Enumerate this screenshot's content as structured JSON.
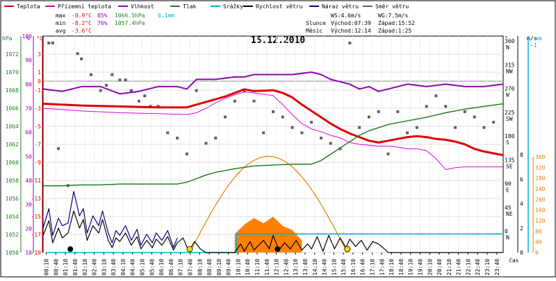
{
  "chart_data": {
    "type": "line",
    "title": "15.12.2010",
    "legend": [
      {
        "label": "Teplota",
        "color": "#e00000"
      },
      {
        "label": "Přízemní teplota",
        "color": "#e000e0"
      },
      {
        "label": "Vlhkost",
        "color": "#9000b0"
      },
      {
        "label": "Tlak",
        "color": "#208020"
      },
      {
        "label": "Srážky",
        "color": "#00b0d0"
      },
      {
        "label": "Rychlost větru",
        "color": "#000000"
      },
      {
        "label": "Náraz větru",
        "color": "#000080"
      },
      {
        "label": "Směr větru",
        "color": "#606060"
      }
    ],
    "stats": {
      "max_label": "max",
      "max_temp": "-0.9°C",
      "max_hum": "85%",
      "max_press": "1066.5hPa",
      "precip": "0.1mm",
      "min_label": "min",
      "min_temp": "-8.2°C",
      "min_hum": "76%",
      "min_press": "1057.4hPa",
      "avg_label": "avg",
      "avg_temp": "-3.6°C"
    },
    "wind_info": {
      "ws": "WS:4.6m/s",
      "wg": "WG:7.5m/s"
    },
    "sun_info": {
      "label": "Slunce",
      "rise": "Východ:07:39",
      "set": "Západ:15:52"
    },
    "moon_info": {
      "label": "Měsíc",
      "rise": "Východ:12:14",
      "set": "Západ:1:25"
    },
    "axes": {
      "hpa": {
        "label": "hPa",
        "ticks": [
          "1050",
          "1052",
          "1054",
          "1056",
          "1058",
          "1060",
          "1062",
          "1064",
          "1066",
          "1068",
          "1070",
          "1072"
        ],
        "range": [
          1050,
          1074
        ]
      },
      "pct": {
        "label": "%",
        "ticks": [
          "10",
          "20",
          "30",
          "40",
          "50",
          "60",
          "70",
          "80",
          "90",
          "100"
        ],
        "range": [
          10,
          100
        ]
      },
      "celsius": {
        "label": "°C",
        "ticks": [
          "-19",
          "-17",
          "-15",
          "-13",
          "-11",
          "-9",
          "-7",
          "-5",
          "-3",
          "-1",
          "0",
          "1",
          "3"
        ],
        "range": [
          -19,
          5
        ]
      },
      "direction": {
        "label": "°",
        "ticks": [
          "0",
          "45",
          "90",
          "135",
          "180",
          "225",
          "270",
          "315",
          "360"
        ],
        "names": [
          "N",
          "NE",
          "E",
          "SE",
          "S",
          "SW",
          "W",
          "NW",
          "N"
        ]
      },
      "ms": {
        "label": "m/s",
        "ticks": [
          "0",
          "2",
          "4",
          "6",
          "8"
        ],
        "range": [
          0,
          8
        ]
      },
      "mm": {
        "label": "mm",
        "ticks": [
          "0",
          "40",
          "80",
          "120",
          "160",
          "200",
          "240",
          "280",
          "320",
          "360"
        ],
        "range": [
          0,
          360
        ],
        "top_label": "~1"
      },
      "x_unit": "čas",
      "x_ticks": [
        "00:10",
        "00:40",
        "01:10",
        "01:40",
        "02:10",
        "02:40",
        "03:10",
        "03:40",
        "04:10",
        "04:40",
        "05:10",
        "05:40",
        "06:10",
        "06:40",
        "07:10",
        "07:40",
        "08:10",
        "08:40",
        "09:10",
        "09:40",
        "10:10",
        "10:40",
        "11:10",
        "11:40",
        "12:10",
        "12:40",
        "13:10",
        "13:40",
        "14:10",
        "14:40",
        "15:10",
        "15:40",
        "16:10",
        "16:40",
        "17:10",
        "17:40",
        "18:10",
        "18:40",
        "19:10",
        "19:40",
        "20:10",
        "20:40",
        "21:10",
        "21:40",
        "22:10",
        "22:40",
        "23:10",
        "23:40"
      ]
    },
    "x_range_hours": [
      0,
      24
    ],
    "series": [
      {
        "name": "Teplota",
        "color": "#e00000",
        "x": [
          0,
          2,
          4,
          6,
          7.5,
          8,
          8.5,
          9,
          9.5,
          10,
          10.5,
          11,
          12,
          12.5,
          13,
          13.5,
          14,
          14.5,
          15,
          15.5,
          16,
          16.5,
          17,
          17.5,
          18,
          18.5,
          19,
          19.5,
          20,
          20.5,
          21,
          21.5,
          22,
          22.5,
          23,
          23.5,
          24
        ],
        "y": [
          -2.5,
          -2.7,
          -2.8,
          -2.9,
          -2.9,
          -2.6,
          -2.3,
          -2.0,
          -1.7,
          -1.3,
          -0.9,
          -1.1,
          -1.0,
          -1.3,
          -1.8,
          -2.6,
          -3.3,
          -4.0,
          -4.7,
          -5.3,
          -5.8,
          -6.2,
          -6.6,
          -6.8,
          -6.6,
          -6.4,
          -6.2,
          -6.1,
          -6.2,
          -6.4,
          -6.5,
          -6.7,
          -7.0,
          -7.5,
          -7.8,
          -8.0,
          -8.2
        ]
      },
      {
        "name": "Přízemní teplota",
        "color": "#e000e0",
        "x": [
          0,
          2,
          4,
          6,
          7.5,
          8,
          8.5,
          9,
          9.5,
          10,
          10.5,
          11,
          12,
          12.5,
          13,
          13.5,
          14,
          14.5,
          15,
          15.5,
          16,
          16.5,
          17,
          17.5,
          18,
          18.5,
          19,
          19.5,
          20,
          20.5,
          21,
          21.5,
          22,
          22.5,
          23,
          23.5,
          24
        ],
        "y": [
          -3.0,
          -3.3,
          -3.5,
          -3.6,
          -3.7,
          -3.5,
          -3.0,
          -2.4,
          -1.9,
          -1.5,
          -1.2,
          -1.3,
          -1.6,
          -2.6,
          -3.7,
          -4.7,
          -5.3,
          -5.6,
          -6.0,
          -6.3,
          -6.8,
          -7.0,
          -7.1,
          -7.2,
          -7.2,
          -7.3,
          -7.5,
          -7.5,
          -7.7,
          -8.6,
          -9.8,
          -9.6,
          -9.5,
          -9.5,
          -9.5,
          -9.5,
          -9.5
        ]
      },
      {
        "name": "Vlhkost",
        "color": "#9000b0",
        "x": [
          0,
          1,
          2,
          3,
          4,
          5,
          6,
          7,
          7.5,
          8,
          9,
          10,
          10.5,
          11,
          12,
          13,
          14,
          14.5,
          15,
          16,
          16.5,
          17,
          17.5,
          18,
          19,
          20,
          21,
          22,
          23,
          24
        ],
        "y": [
          78,
          77,
          79,
          79,
          76,
          77,
          79,
          79,
          78,
          82,
          82,
          83,
          83,
          84,
          84,
          84,
          85,
          84,
          82,
          80,
          78,
          79,
          77,
          78,
          80,
          79,
          80,
          79,
          79,
          80
        ]
      },
      {
        "name": "Tlak",
        "color": "#208020",
        "x": [
          0,
          1,
          2,
          3,
          4,
          5,
          6,
          7,
          7.5,
          8,
          8.5,
          9,
          10,
          11,
          12,
          13,
          14,
          14.5,
          15,
          15.5,
          16,
          16.5,
          17,
          18,
          19,
          20,
          21,
          22,
          23,
          24
        ],
        "y": [
          1057.4,
          1057.4,
          1057.5,
          1057.5,
          1057.6,
          1057.6,
          1057.6,
          1057.6,
          1057.8,
          1058.2,
          1058.6,
          1058.9,
          1059.3,
          1059.6,
          1059.7,
          1059.8,
          1059.8,
          1060.2,
          1060.9,
          1061.6,
          1062.3,
          1063.0,
          1063.5,
          1064.2,
          1064.6,
          1065.0,
          1065.5,
          1065.9,
          1066.2,
          1066.5
        ]
      },
      {
        "name": "Rychlost větru",
        "color": "#000000",
        "x": [
          0,
          0.3,
          0.5,
          0.8,
          1.0,
          1.3,
          1.6,
          1.9,
          2.1,
          2.3,
          2.6,
          2.9,
          3.1,
          3.4,
          3.6,
          3.8,
          4.0,
          4.3,
          4.6,
          4.9,
          5.1,
          5.4,
          5.7,
          5.9,
          6.2,
          6.5,
          6.8,
          7.0,
          7.3,
          7.6,
          7.9,
          8.2,
          8.5,
          9.0,
          9.5,
          10.0,
          10.3,
          10.5,
          10.8,
          11.0,
          11.3,
          11.5,
          11.8,
          12.0,
          12.3,
          12.6,
          12.9,
          13.2,
          13.5,
          13.8,
          14.0,
          14.3,
          14.6,
          14.9,
          15.2,
          15.5,
          15.8,
          16.0,
          16.3,
          16.6,
          16.9,
          17.2,
          17.5,
          17.8,
          18.0,
          18.3,
          18.6,
          19.0,
          19.5,
          20.0,
          20.5,
          21.0,
          21.5,
          22.0,
          22.5,
          23.0,
          23.5,
          24.0
        ],
        "y": [
          1.4,
          2.6,
          0.8,
          2.0,
          1.2,
          1.6,
          3.4,
          2.0,
          2.7,
          1.0,
          2.2,
          1.6,
          2.7,
          1.0,
          0.4,
          1.2,
          0.9,
          1.6,
          0.6,
          1.3,
          0.3,
          1.0,
          0.4,
          1.1,
          0.6,
          1.3,
          0.2,
          0.8,
          1.2,
          0.1,
          0.9,
          0.3,
          0.0,
          0.0,
          0.0,
          0.0,
          0.7,
          0.1,
          0.9,
          0.2,
          0.7,
          1.0,
          0.3,
          1.4,
          0.2,
          0.8,
          0.3,
          1.0,
          0.2,
          0.7,
          0.3,
          1.3,
          0.1,
          1.4,
          0.3,
          1.2,
          0.4,
          1.1,
          0.5,
          1.0,
          0.2,
          0.9,
          0.7,
          0.3,
          0.0,
          0.0,
          0.0,
          0.0,
          0.0,
          0.0,
          0.0,
          0.0,
          0.0,
          0.0,
          0.0,
          0.0,
          0.0,
          0.0
        ]
      },
      {
        "name": "Náraz větru",
        "color": "#000080",
        "x": [
          0,
          0.3,
          0.5,
          0.8,
          1.0,
          1.3,
          1.6,
          1.9,
          2.1,
          2.3,
          2.6,
          2.9,
          3.1,
          3.4,
          3.6,
          3.8,
          4.0,
          4.3,
          4.6,
          4.9,
          5.1,
          5.4,
          5.7,
          5.9,
          6.2,
          6.5,
          6.8,
          7.0
        ],
        "y": [
          2.0,
          3.6,
          1.4,
          2.8,
          2.2,
          2.4,
          5.0,
          3.0,
          3.6,
          1.6,
          3.0,
          2.2,
          3.4,
          1.6,
          0.8,
          1.8,
          1.4,
          2.2,
          1.0,
          1.9,
          0.6,
          1.5,
          0.8,
          1.6,
          1.0,
          1.8,
          0.4,
          1.2
        ]
      },
      {
        "name": "Směr větru",
        "color": "#606060",
        "x": [
          0.3,
          0.5,
          0.8,
          1.3,
          1.8,
          2.0,
          2.5,
          3.0,
          3.3,
          3.6,
          4.0,
          4.3,
          4.6,
          5.0,
          5.3,
          5.6,
          6.0,
          6.5,
          7.0,
          7.5,
          8.0,
          8.5,
          9.0,
          9.5,
          10.0,
          10.5,
          11.0,
          11.5,
          12.0,
          12.5,
          13.0,
          13.5,
          14.0,
          14.5,
          15.0,
          15.5,
          16.0,
          16.5,
          17.0,
          17.5,
          18.0,
          18.5,
          19.0,
          19.5,
          20.0,
          20.5,
          21.0,
          21.5,
          22.0,
          22.5,
          23.0,
          23.5
        ],
        "y": [
          360,
          360,
          160,
          90,
          340,
          330,
          300,
          270,
          280,
          300,
          290,
          290,
          270,
          250,
          260,
          240,
          240,
          190,
          180,
          150,
          270,
          170,
          180,
          220,
          250,
          270,
          250,
          190,
          230,
          220,
          200,
          190,
          210,
          180,
          170,
          160,
          360,
          200,
          220,
          230,
          150,
          230,
          190,
          200,
          240,
          260,
          240,
          200,
          230,
          220,
          200,
          210
        ]
      }
    ],
    "precip_mm": {
      "x": [
        10.0,
        10.5,
        11.0,
        11.5,
        12.0,
        12.5,
        13.0,
        13.5
      ],
      "y": [
        70,
        105,
        130,
        110,
        135,
        100,
        85,
        45
      ]
    },
    "sunshine_curve": {
      "color": "#e08000",
      "start_h": 7.65,
      "end_h": 15.87,
      "peak_h": 11.75,
      "peak_pct": 50
    }
  }
}
